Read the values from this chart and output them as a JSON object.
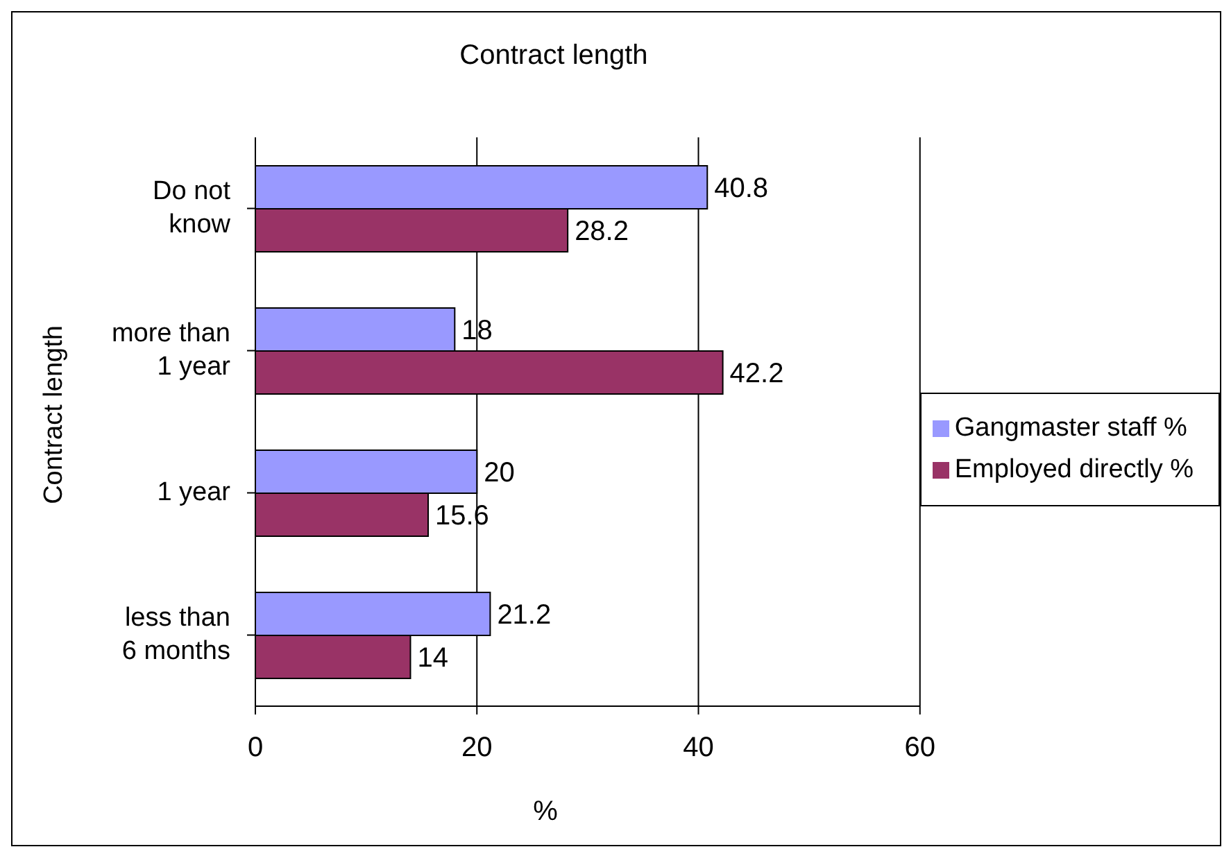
{
  "chart_data": {
    "type": "bar",
    "orientation": "horizontal",
    "title": "Contract length",
    "xlabel": "%",
    "ylabel": "Contract length",
    "categories": [
      "Do not know",
      "more than 1 year",
      "1 year",
      "less than 6 months"
    ],
    "series": [
      {
        "name": "Gangmaster staff %",
        "color": "#9999ff",
        "values": [
          40.8,
          18,
          20,
          21.2
        ]
      },
      {
        "name": "Employed directly %",
        "color": "#993366",
        "values": [
          28.2,
          42.2,
          15.6,
          14
        ]
      }
    ],
    "xlim": [
      0,
      60
    ],
    "xticks": [
      0,
      20,
      40,
      60
    ],
    "grid": "x",
    "legend": "right",
    "data_labels": true
  }
}
